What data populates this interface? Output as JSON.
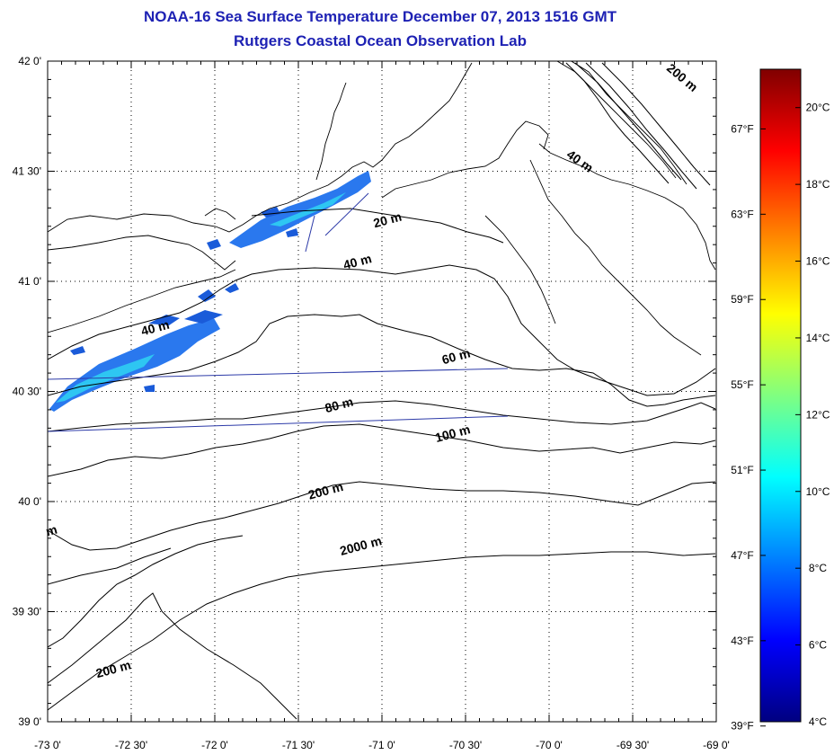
{
  "title": "NOAA-16 Sea Surface Temperature December 07, 2013 1516 GMT",
  "subtitle": "Rutgers Coastal Ocean Observation Lab",
  "map": {
    "lon_range": [
      -73.0,
      -69.0
    ],
    "lat_range": [
      39.0,
      42.0
    ],
    "grid": true,
    "lon_ticks": [
      {
        "value": -73.0,
        "label": "-73 0'"
      },
      {
        "value": -72.5,
        "label": "-72 30'"
      },
      {
        "value": -72.0,
        "label": "-72 0'"
      },
      {
        "value": -71.5,
        "label": "-71 30'"
      },
      {
        "value": -71.0,
        "label": "-71 0'"
      },
      {
        "value": -70.5,
        "label": "-70 30'"
      },
      {
        "value": -70.0,
        "label": "-70 0'"
      },
      {
        "value": -69.5,
        "label": "-69 30'"
      },
      {
        "value": -69.0,
        "label": "-69 0'"
      }
    ],
    "lat_ticks": [
      {
        "value": 42.0,
        "label": "42 0'"
      },
      {
        "value": 41.5,
        "label": "41 30'"
      },
      {
        "value": 41.0,
        "label": "41 0'"
      },
      {
        "value": 40.5,
        "label": "40 30'"
      },
      {
        "value": 40.0,
        "label": "40 0'"
      },
      {
        "value": 39.5,
        "label": "39 30'"
      },
      {
        "value": 39.0,
        "label": "39 0'"
      }
    ],
    "contour_labels": [
      {
        "text": "200 m",
        "lon": -69.22,
        "lat": 41.91
      },
      {
        "text": "40 m",
        "lon": -69.83,
        "lat": 41.53
      },
      {
        "text": "20 m",
        "lon": -70.96,
        "lat": 41.26
      },
      {
        "text": "40 m",
        "lon": -71.14,
        "lat": 41.07
      },
      {
        "text": "40 m",
        "lon": -72.35,
        "lat": 40.77
      },
      {
        "text": "60 m",
        "lon": -70.55,
        "lat": 40.64
      },
      {
        "text": "80 m",
        "lon": -71.25,
        "lat": 40.42
      },
      {
        "text": "100 m",
        "lon": -70.57,
        "lat": 40.29
      },
      {
        "text": "200 m",
        "lon": -71.33,
        "lat": 40.03
      },
      {
        "text": "2000 m",
        "lon": -71.12,
        "lat": 39.78
      },
      {
        "text": "200 m",
        "lon": -72.6,
        "lat": 39.22
      },
      {
        "text": "m",
        "lon": -72.97,
        "lat": 39.85
      }
    ]
  },
  "colorbar": {
    "min_c": 4,
    "max_c": 21,
    "colors": [
      "#000080",
      "#0000ff",
      "#0080ff",
      "#00ffff",
      "#80ff80",
      "#ffff00",
      "#ff8000",
      "#ff0000",
      "#800000"
    ],
    "celsius_ticks": [
      {
        "value": 4,
        "label": "4°C"
      },
      {
        "value": 6,
        "label": "6°C"
      },
      {
        "value": 8,
        "label": "8°C"
      },
      {
        "value": 10,
        "label": "10°C"
      },
      {
        "value": 12,
        "label": "12°C"
      },
      {
        "value": 14,
        "label": "14°C"
      },
      {
        "value": 16,
        "label": "16°C"
      },
      {
        "value": 18,
        "label": "18°C"
      },
      {
        "value": 20,
        "label": "20°C"
      }
    ],
    "fahrenheit_ticks": [
      {
        "value": 39,
        "label": "39°F"
      },
      {
        "value": 43,
        "label": "43°F"
      },
      {
        "value": 47,
        "label": "47°F"
      },
      {
        "value": 51,
        "label": "51°F"
      },
      {
        "value": 55,
        "label": "55°F"
      },
      {
        "value": 59,
        "label": "59°F"
      },
      {
        "value": 63,
        "label": "63°F"
      },
      {
        "value": 67,
        "label": "67°F"
      }
    ]
  }
}
